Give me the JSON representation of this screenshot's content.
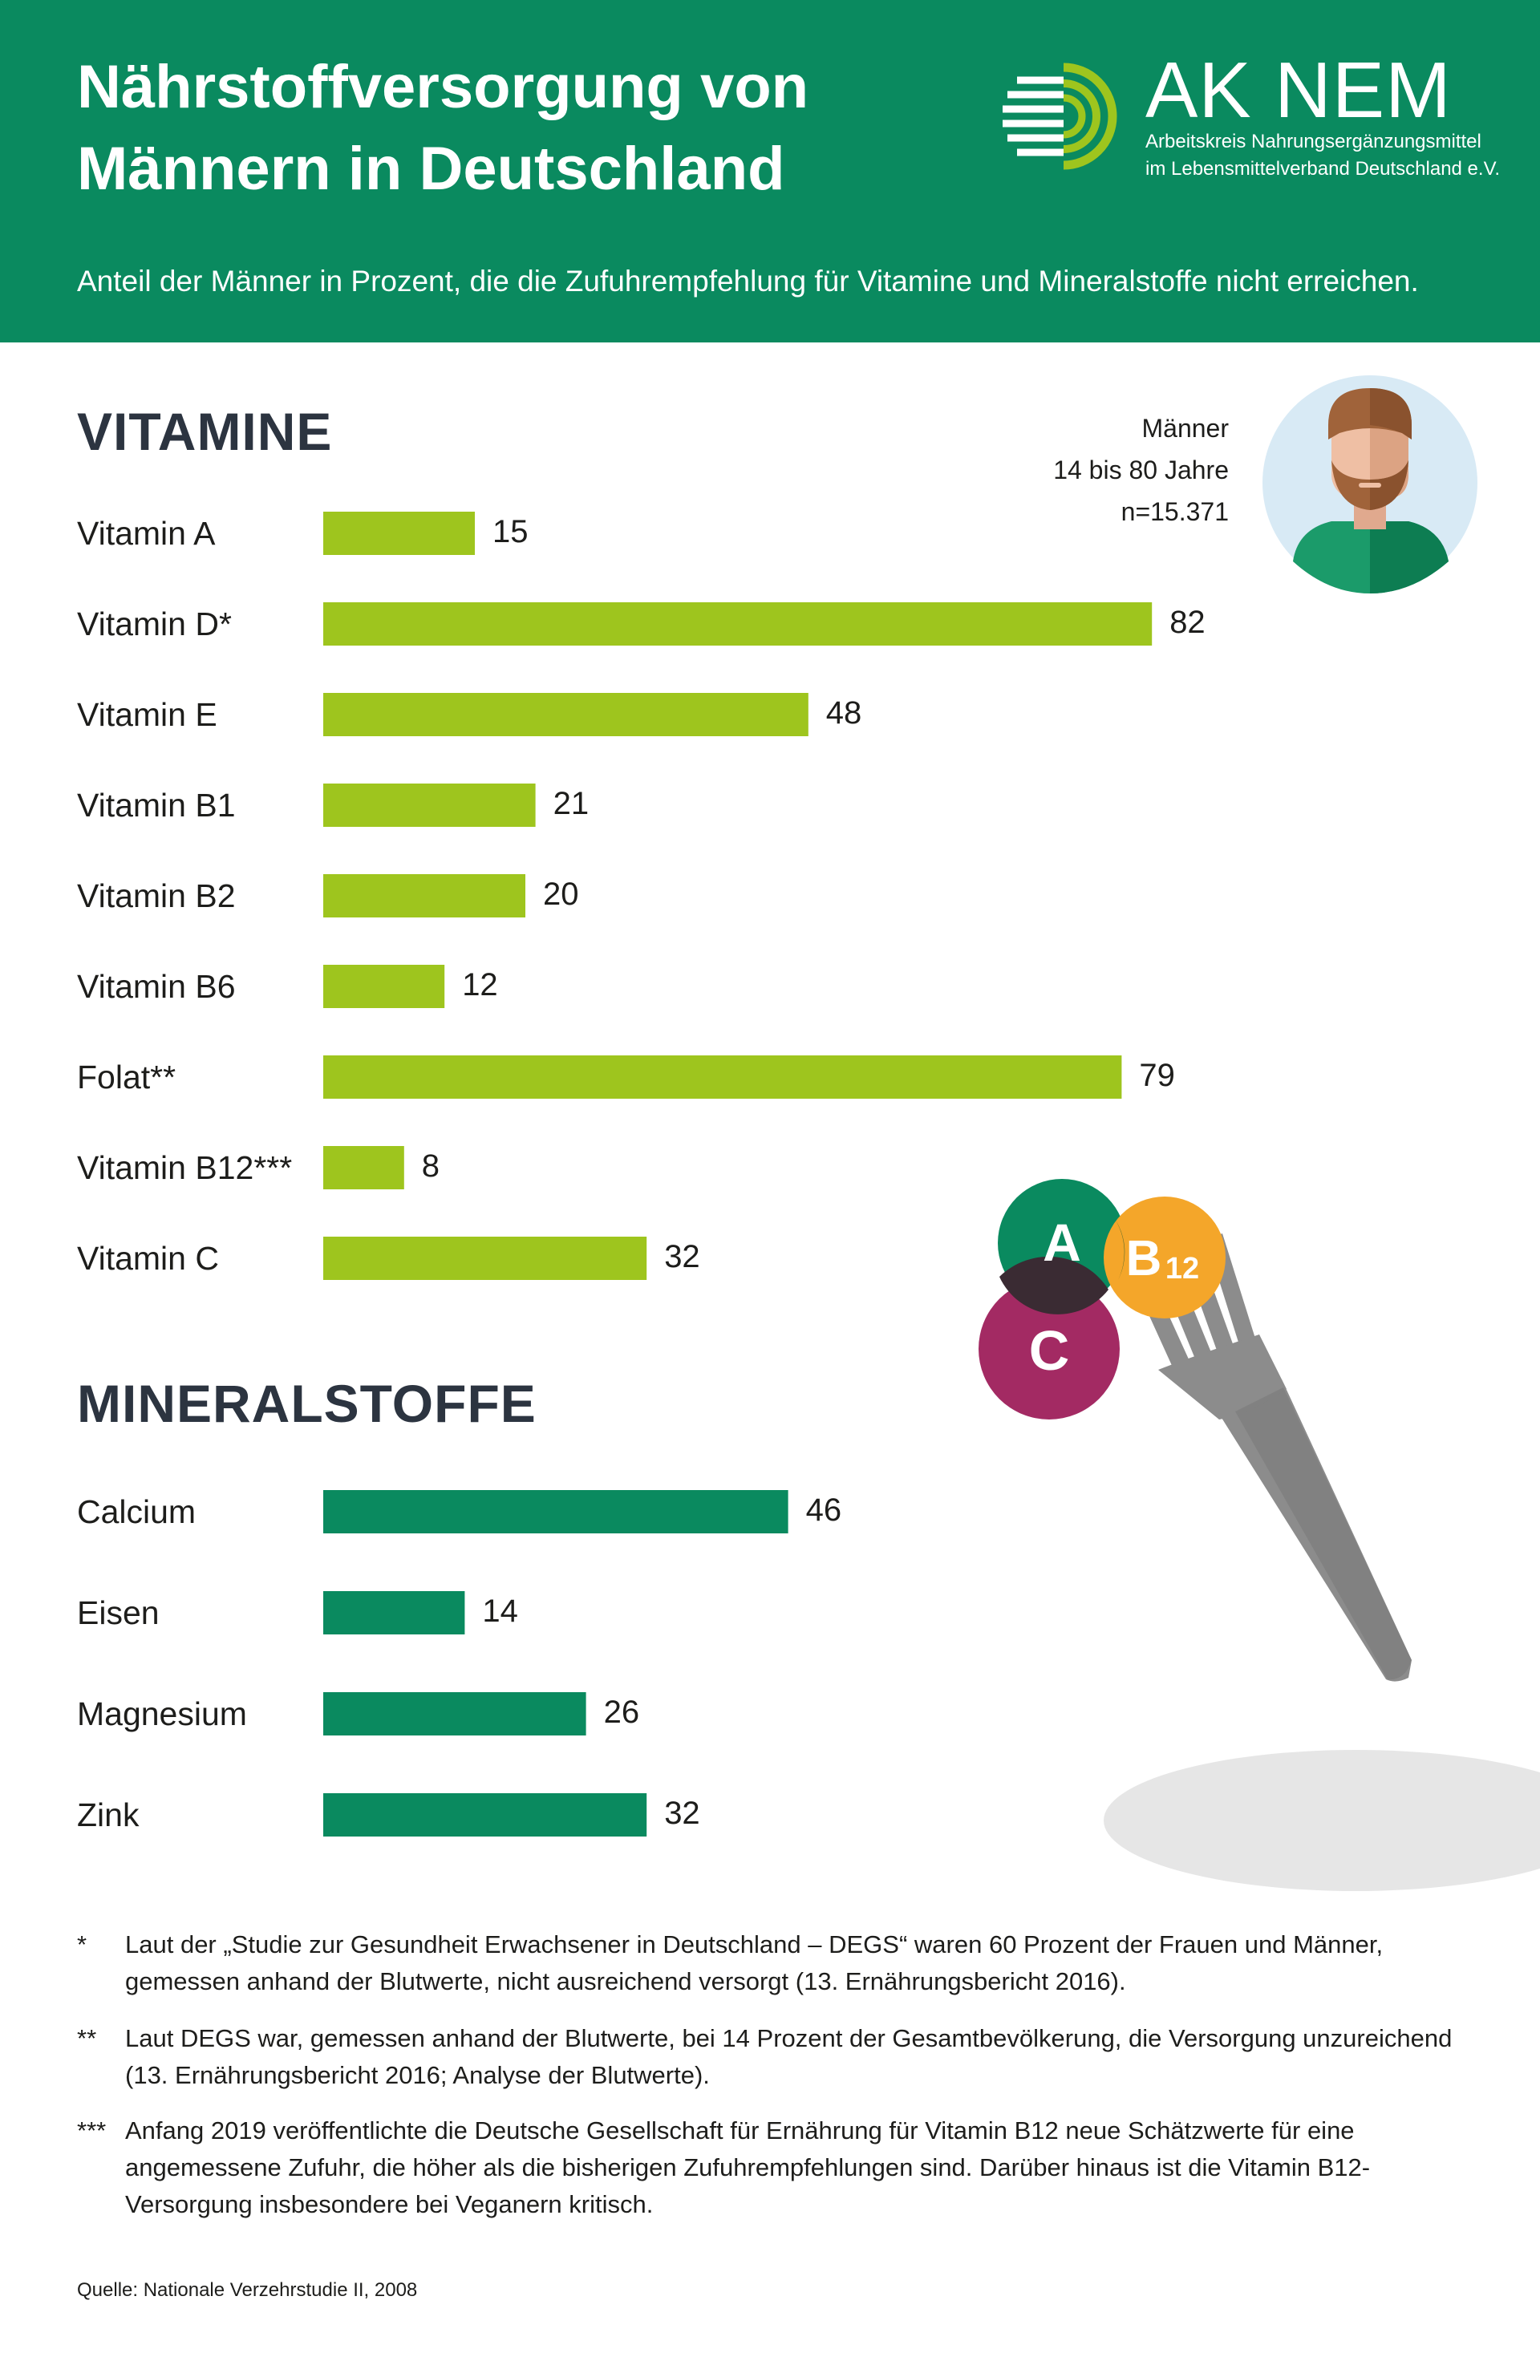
{
  "header": {
    "title_line1": "Nährstoffversorgung von",
    "title_line2": "Männern in Deutschland",
    "subtitle": "Anteil der Männer in Prozent, die die Zufuhrempfehlung für Vitamine und Mineralstoffe nicht erreichen.",
    "brand_name": "AK NEM",
    "brand_sub1": "Arbeitskreis Nahrungsergänzungsmittel",
    "brand_sub2": "im Lebensmittelverband Deutschland e.V."
  },
  "demographic": {
    "line1": "Männer",
    "line2": "14 bis 80 Jahre",
    "line3": "n=15.371"
  },
  "illustration": {
    "badge_a": "A",
    "badge_b": "B",
    "badge_b_sub": "12",
    "badge_c": "C"
  },
  "colors": {
    "header_green": "#0a8a5f",
    "vitamin_bar": "#9ec51e",
    "mineral_bar": "#0a8a5f",
    "section_title": "#2c3440"
  },
  "chart_data": [
    {
      "type": "bar",
      "orientation": "horizontal",
      "title": "VITAMINE",
      "unit": "Prozent",
      "categories": [
        "Vitamin A",
        "Vitamin D*",
        "Vitamin E",
        "Vitamin B1",
        "Vitamin B2",
        "Vitamin B6",
        "Folat**",
        "Vitamin B12***",
        "Vitamin C"
      ],
      "values": [
        15,
        82,
        48,
        21,
        20,
        12,
        79,
        8,
        32
      ],
      "xlim": [
        0,
        100
      ],
      "grid": false
    },
    {
      "type": "bar",
      "orientation": "horizontal",
      "title": "MINERALSTOFFE",
      "unit": "Prozent",
      "categories": [
        "Calcium",
        "Eisen",
        "Magnesium",
        "Zink"
      ],
      "values": [
        46,
        14,
        26,
        32
      ],
      "xlim": [
        0,
        100
      ],
      "grid": false
    }
  ],
  "footnotes": [
    {
      "mark": "*",
      "text": "Laut der „Studie zur Gesundheit Erwachsener in Deutschland – DEGS“ waren 60 Prozent der Frauen und Männer, gemessen anhand der Blutwerte, nicht ausreichend versorgt (13. Ernährungsbericht 2016)."
    },
    {
      "mark": "**",
      "text": "Laut DEGS war, gemessen anhand der Blutwerte, bei 14 Prozent der Gesamtbevölkerung, die Versorgung unzureichend (13. Ernährungsbericht 2016; Analyse der Blutwerte)."
    },
    {
      "mark": "***",
      "text": "Anfang 2019 veröffentlichte die Deutsche Gesellschaft für Ernährung für Vitamin B12 neue Schätzwerte für eine angemessene Zufuhr, die höher als die bisherigen Zufuhrempfehlungen sind. Darüber hinaus ist die Vitamin B12-Versorgung insbesondere bei Veganern kritisch."
    }
  ],
  "source": "Quelle: Nationale Verzehrstudie II, 2008"
}
